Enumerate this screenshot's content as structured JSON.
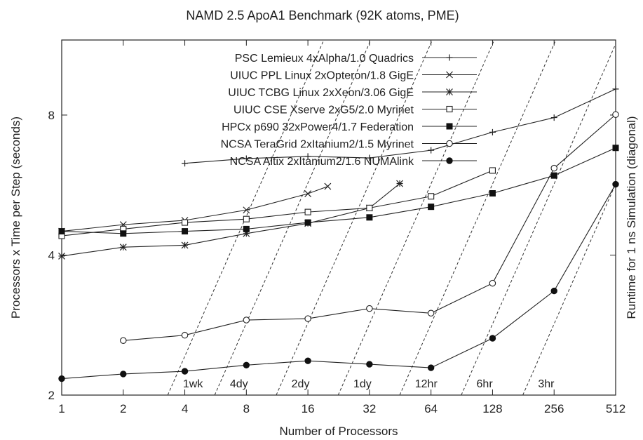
{
  "chart_data": {
    "type": "line",
    "title": "NAMD 2.5 ApoA1 Benchmark (92K atoms, PME)",
    "xlabel": "Number of Processors",
    "ylabel": "Processors x Time per Step (seconds)",
    "y2label": "Runtime for 1 ns Simulation (diagonal)",
    "x_scale": "log2",
    "y_scale": "log2",
    "xlim": [
      1,
      512
    ],
    "ylim": [
      2,
      11.6
    ],
    "x_ticks": [
      1,
      2,
      4,
      8,
      16,
      32,
      64,
      128,
      256,
      512
    ],
    "y_ticks": [
      2,
      4,
      8
    ],
    "legend_position": "top-left",
    "series": [
      {
        "name": "PSC Lemieux 4xAlpha/1.0 Quadrics",
        "marker": "plus",
        "x": [
          4,
          8,
          16,
          32,
          64,
          128,
          256,
          512
        ],
        "y": [
          6.3,
          6.45,
          6.52,
          6.47,
          6.72,
          7.35,
          7.9,
          9.1
        ]
      },
      {
        "name": "UIUC PPL Linux 2xOpteron/1.8 GigE",
        "marker": "x",
        "x": [
          1,
          2,
          4,
          8,
          16,
          20
        ],
        "y": [
          4.5,
          4.65,
          4.75,
          5.0,
          5.42,
          5.62
        ]
      },
      {
        "name": "UIUC TCBG Linux 2xXeon/3.06 GigE",
        "marker": "star",
        "x": [
          1,
          2,
          4,
          8,
          16,
          32,
          45
        ],
        "y": [
          3.98,
          4.16,
          4.2,
          4.45,
          4.68,
          5.05,
          5.7
        ]
      },
      {
        "name": "UIUC CSE Xserve 2xG5/2.0 Myrinet",
        "marker": "square-open",
        "x": [
          1,
          2,
          4,
          8,
          16,
          32,
          64,
          128
        ],
        "y": [
          4.4,
          4.55,
          4.7,
          4.78,
          4.95,
          5.05,
          5.35,
          6.08
        ]
      },
      {
        "name": "HPCx p690 32xPower4/1.7 Federation",
        "marker": "square-filled",
        "x": [
          1,
          2,
          4,
          8,
          16,
          32,
          64,
          128,
          256,
          512
        ],
        "y": [
          4.5,
          4.45,
          4.5,
          4.55,
          4.7,
          4.82,
          5.08,
          5.43,
          5.93,
          6.8
        ]
      },
      {
        "name": "NCSA TeraGrid 2xItanium2/1.5 Myrinet",
        "marker": "circle-open",
        "x": [
          2,
          4,
          8,
          16,
          32,
          64,
          128,
          256,
          512
        ],
        "y": [
          2.62,
          2.69,
          2.9,
          2.92,
          3.07,
          3.0,
          3.48,
          6.15,
          8.02
        ]
      },
      {
        "name": "NCSA Altix 2xItanium2/1.6 NUMAlink",
        "marker": "circle-filled",
        "x": [
          1,
          2,
          4,
          8,
          16,
          32,
          64,
          128,
          256,
          512
        ],
        "y": [
          2.17,
          2.22,
          2.25,
          2.32,
          2.37,
          2.33,
          2.29,
          2.65,
          3.35,
          5.68
        ]
      }
    ],
    "diagonals": [
      {
        "label": "1wk",
        "ns_hours": 168
      },
      {
        "label": "4dy",
        "ns_hours": 96
      },
      {
        "label": "2dy",
        "ns_hours": 48
      },
      {
        "label": "1dy",
        "ns_hours": 24
      },
      {
        "label": "12hr",
        "ns_hours": 12
      },
      {
        "label": "6hr",
        "ns_hours": 6
      },
      {
        "label": "3hr",
        "ns_hours": 3
      }
    ]
  }
}
